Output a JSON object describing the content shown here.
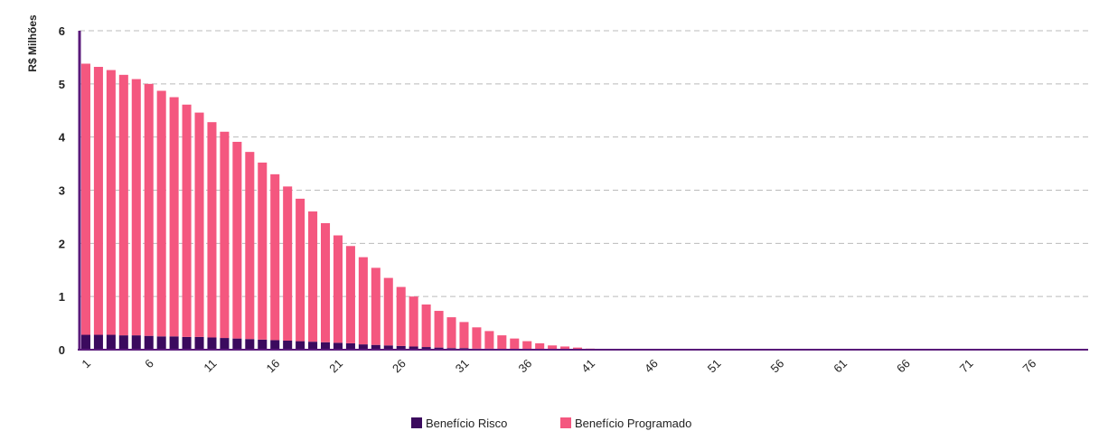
{
  "chart_data": {
    "type": "bar",
    "stacked": true,
    "ylabel": "R$ Milhões",
    "xlabel": "",
    "ylim": [
      0,
      6
    ],
    "yticks": [
      "0",
      "1",
      "2",
      "3",
      "4",
      "5",
      "6"
    ],
    "x_tick_labels": [
      "1",
      "6",
      "11",
      "16",
      "21",
      "26",
      "31",
      "36",
      "41",
      "46",
      "51",
      "56",
      "61",
      "66",
      "71",
      "76"
    ],
    "x_count": 80,
    "grid": "horizontal dashed",
    "legend_position": "bottom",
    "colors": {
      "risco": "#3b0a5e",
      "programado": "#f4577f",
      "axis": "#5a1a7a",
      "grid": "#bbbbbb"
    },
    "series": [
      {
        "name": "Benefício Risco",
        "values": [
          0.28,
          0.28,
          0.28,
          0.27,
          0.27,
          0.26,
          0.25,
          0.25,
          0.24,
          0.24,
          0.23,
          0.22,
          0.21,
          0.2,
          0.19,
          0.18,
          0.17,
          0.16,
          0.15,
          0.14,
          0.13,
          0.12,
          0.1,
          0.09,
          0.08,
          0.07,
          0.06,
          0.05,
          0.04,
          0.03,
          0.03,
          0.02,
          0.02,
          0.01,
          0.01,
          0.01,
          0.01,
          0,
          0,
          0,
          0,
          0,
          0,
          0,
          0,
          0,
          0,
          0,
          0,
          0,
          0,
          0,
          0,
          0,
          0,
          0,
          0,
          0,
          0,
          0,
          0,
          0,
          0,
          0,
          0,
          0,
          0,
          0,
          0,
          0,
          0,
          0,
          0,
          0,
          0,
          0,
          0,
          0,
          0,
          0
        ]
      },
      {
        "name": "Benefício Programado",
        "values": [
          5.1,
          5.04,
          4.98,
          4.9,
          4.82,
          4.74,
          4.62,
          4.5,
          4.37,
          4.22,
          4.05,
          3.88,
          3.7,
          3.52,
          3.33,
          3.12,
          2.9,
          2.68,
          2.45,
          2.24,
          2.02,
          1.83,
          1.64,
          1.45,
          1.27,
          1.11,
          0.94,
          0.8,
          0.69,
          0.58,
          0.49,
          0.4,
          0.33,
          0.26,
          0.2,
          0.15,
          0.11,
          0.08,
          0.06,
          0.04,
          0.02,
          0.01,
          0,
          0,
          0,
          0,
          0,
          0,
          0,
          0,
          0,
          0,
          0,
          0,
          0,
          0,
          0,
          0,
          0,
          0,
          0,
          0,
          0,
          0,
          0,
          0,
          0,
          0,
          0,
          0,
          0,
          0,
          0,
          0,
          0,
          0,
          0,
          0,
          0,
          0
        ]
      }
    ]
  }
}
